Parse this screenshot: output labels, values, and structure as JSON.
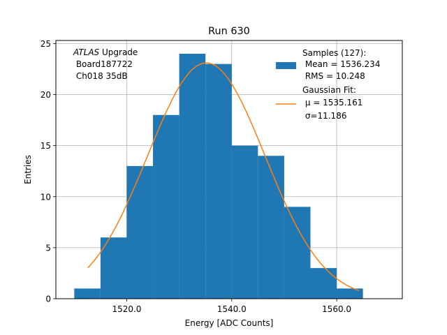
{
  "chart_data": {
    "type": "bar",
    "title": "Run 630",
    "xlabel": "Energy [ADC Counts]",
    "ylabel": "Entries",
    "xlim": [
      1506.5,
      1572.5
    ],
    "ylim": [
      0,
      25.3
    ],
    "grid": true,
    "x_ticks": [
      1520,
      1540,
      1560
    ],
    "x_tick_labels": [
      "1520.0",
      "1540.0",
      "1560.0"
    ],
    "y_ticks": [
      0,
      5,
      10,
      15,
      20,
      25
    ],
    "y_tick_labels": [
      "0",
      "5",
      "10",
      "15",
      "20",
      "25"
    ],
    "bins": [
      {
        "x0": 1510,
        "x1": 1515,
        "value": 1
      },
      {
        "x0": 1515,
        "x1": 1520,
        "value": 6
      },
      {
        "x0": 1520,
        "x1": 1525,
        "value": 13
      },
      {
        "x0": 1525,
        "x1": 1530,
        "value": 18
      },
      {
        "x0": 1530,
        "x1": 1535,
        "value": 24
      },
      {
        "x0": 1535,
        "x1": 1540,
        "value": 23
      },
      {
        "x0": 1540,
        "x1": 1545,
        "value": 15
      },
      {
        "x0": 1545,
        "x1": 1550,
        "value": 14
      },
      {
        "x0": 1550,
        "x1": 1555,
        "value": 9
      },
      {
        "x0": 1555,
        "x1": 1560,
        "value": 3
      },
      {
        "x0": 1560,
        "x1": 1565,
        "value": 1
      }
    ],
    "fit": {
      "mu": 1535.161,
      "sigma": 11.186,
      "amplitude": 23.1,
      "x_range": [
        1512.6,
        1564.2
      ]
    },
    "colors": {
      "histogram": "#1f77b4",
      "fit_line": "#ff7f0e",
      "grid": "#b0b0b0"
    },
    "annotation": {
      "line1_italic": "ATLAS",
      "line1_rest": " Upgrade",
      "line2": " Board187722",
      "line3": " Ch018 35dB"
    },
    "legend": {
      "placement": "upper right",
      "hist_lines": [
        "Samples (127):",
        " Mean = 1536.234",
        " RMS = 10.248"
      ],
      "fit_lines": [
        "Gaussian Fit:",
        " μ = 1535.161",
        " σ=11.186"
      ]
    }
  }
}
